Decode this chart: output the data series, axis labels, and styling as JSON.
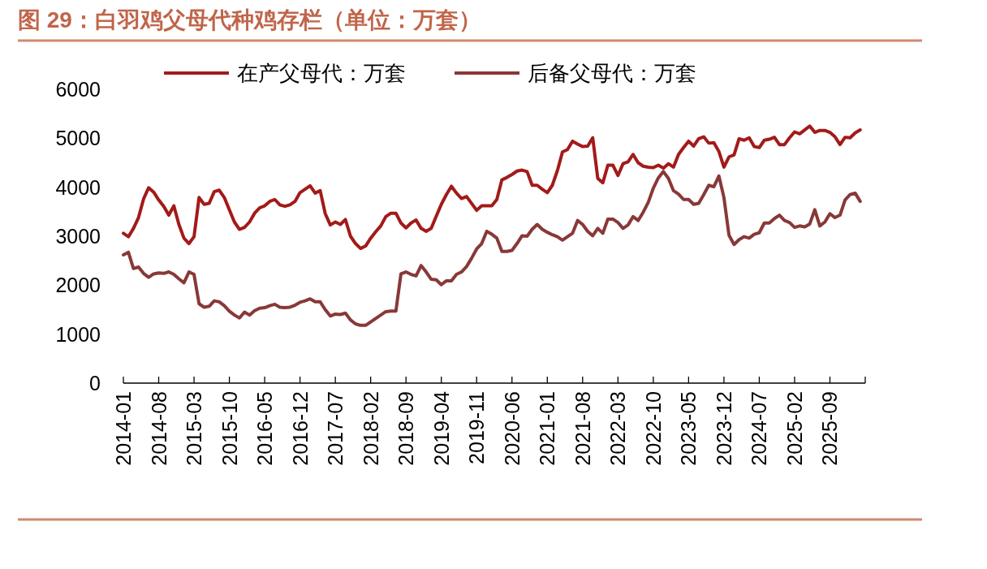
{
  "chart_data": {
    "type": "line",
    "title": "图 29：白羽鸡父母代种鸡存栏（单位：万套）",
    "x": [
      "2014-01",
      "2014-02",
      "2014-03",
      "2014-04",
      "2014-05",
      "2014-06",
      "2014-07",
      "2014-08",
      "2014-09",
      "2014-10",
      "2014-11",
      "2014-12",
      "2015-01",
      "2015-02",
      "2015-03",
      "2015-04",
      "2015-05",
      "2015-06",
      "2015-07",
      "2015-08",
      "2015-09",
      "2015-10",
      "2015-11",
      "2015-12",
      "2016-01",
      "2016-02",
      "2016-03",
      "2016-04",
      "2016-05",
      "2016-06",
      "2016-07",
      "2016-08",
      "2016-09",
      "2016-10",
      "2016-11",
      "2016-12",
      "2017-01",
      "2017-02",
      "2017-03",
      "2017-04",
      "2017-05",
      "2017-06",
      "2017-07",
      "2017-08",
      "2017-09",
      "2017-10",
      "2017-11",
      "2017-12",
      "2018-01",
      "2018-02",
      "2018-03",
      "2018-04",
      "2018-05",
      "2018-06",
      "2018-07",
      "2018-08",
      "2018-09",
      "2018-10",
      "2018-11",
      "2018-12",
      "2019-01",
      "2019-02",
      "2019-03",
      "2019-04",
      "2019-05",
      "2019-06",
      "2019-07",
      "2019-08",
      "2019-09",
      "2019-10",
      "2019-11",
      "2019-12",
      "2020-01",
      "2020-02",
      "2020-03",
      "2020-04",
      "2020-05",
      "2020-06",
      "2020-07",
      "2020-08",
      "2020-09",
      "2020-10",
      "2020-11",
      "2020-12",
      "2021-01",
      "2021-02",
      "2021-03",
      "2021-04",
      "2021-05",
      "2021-06",
      "2021-07",
      "2021-08",
      "2021-09",
      "2021-10",
      "2021-11",
      "2021-12",
      "2022-01",
      "2022-02",
      "2022-03",
      "2022-04",
      "2022-05",
      "2022-06",
      "2022-07",
      "2022-08",
      "2022-09",
      "2022-10",
      "2022-11",
      "2022-12",
      "2023-01",
      "2023-02",
      "2023-03",
      "2023-04",
      "2023-05",
      "2023-06",
      "2023-07",
      "2023-08",
      "2023-09",
      "2023-10",
      "2023-11",
      "2023-12",
      "2024-01",
      "2024-02",
      "2024-03",
      "2024-04",
      "2024-05",
      "2024-06",
      "2024-07",
      "2024-08",
      "2024-09",
      "2024-10",
      "2024-11",
      "2024-12",
      "2025-01",
      "2025-02",
      "2025-03",
      "2025-04",
      "2025-05",
      "2025-06",
      "2025-07",
      "2025-08",
      "2025-09",
      "2025-10",
      "2025-11",
      "2025-12",
      "2026-01",
      "2026-02",
      "2026-03"
    ],
    "series": [
      {
        "name": "在产父母代：万套",
        "color": "#a31a1a",
        "values": [
          3060,
          2990,
          3160,
          3380,
          3760,
          3990,
          3900,
          3740,
          3610,
          3430,
          3620,
          3240,
          2960,
          2850,
          2990,
          3790,
          3650,
          3670,
          3910,
          3940,
          3790,
          3540,
          3290,
          3140,
          3180,
          3290,
          3470,
          3580,
          3620,
          3710,
          3750,
          3640,
          3610,
          3640,
          3710,
          3890,
          3960,
          4030,
          3880,
          3930,
          3460,
          3230,
          3290,
          3240,
          3340,
          3000,
          2850,
          2750,
          2800,
          2960,
          3090,
          3210,
          3400,
          3470,
          3470,
          3270,
          3170,
          3270,
          3330,
          3160,
          3100,
          3160,
          3410,
          3650,
          3850,
          4020,
          3880,
          3770,
          3810,
          3670,
          3530,
          3620,
          3620,
          3620,
          3750,
          4150,
          4200,
          4260,
          4330,
          4350,
          4320,
          4040,
          4040,
          3960,
          3890,
          4040,
          4340,
          4720,
          4770,
          4940,
          4880,
          4830,
          4840,
          5010,
          4180,
          4090,
          4450,
          4450,
          4240,
          4480,
          4520,
          4670,
          4500,
          4430,
          4410,
          4400,
          4450,
          4390,
          4480,
          4410,
          4670,
          4810,
          4940,
          4840,
          4990,
          5030,
          4900,
          4910,
          4730,
          4410,
          4620,
          4660,
          4990,
          4960,
          5010,
          4830,
          4810,
          4960,
          4980,
          5020,
          4870,
          4870,
          5010,
          5130,
          5090,
          5170,
          5250,
          5120,
          5160,
          5160,
          5120,
          5030,
          4870,
          5020,
          5010,
          5110,
          5170
        ]
      },
      {
        "name": "后备父母代：万套",
        "color": "#893838",
        "values": [
          2620,
          2670,
          2340,
          2370,
          2240,
          2160,
          2230,
          2250,
          2240,
          2270,
          2220,
          2130,
          2050,
          2270,
          2220,
          1620,
          1550,
          1570,
          1680,
          1660,
          1580,
          1470,
          1390,
          1330,
          1450,
          1390,
          1480,
          1530,
          1540,
          1580,
          1610,
          1550,
          1540,
          1550,
          1590,
          1650,
          1680,
          1720,
          1660,
          1660,
          1500,
          1370,
          1410,
          1400,
          1430,
          1290,
          1210,
          1180,
          1180,
          1250,
          1320,
          1390,
          1460,
          1470,
          1470,
          2230,
          2270,
          2220,
          2190,
          2400,
          2270,
          2120,
          2110,
          2010,
          2090,
          2090,
          2220,
          2270,
          2380,
          2550,
          2740,
          2850,
          3100,
          3040,
          2960,
          2690,
          2690,
          2710,
          2850,
          3010,
          3000,
          3140,
          3240,
          3140,
          3080,
          3030,
          2990,
          2920,
          2990,
          3060,
          3320,
          3240,
          3100,
          3010,
          3160,
          3060,
          3350,
          3350,
          3280,
          3160,
          3230,
          3400,
          3320,
          3490,
          3690,
          3980,
          4190,
          4320,
          4180,
          3930,
          3860,
          3750,
          3750,
          3650,
          3670,
          3850,
          4040,
          4010,
          4230,
          3790,
          3020,
          2830,
          2930,
          2990,
          2960,
          3040,
          3070,
          3270,
          3270,
          3360,
          3430,
          3320,
          3280,
          3180,
          3210,
          3190,
          3250,
          3540,
          3210,
          3290,
          3460,
          3380,
          3430,
          3740,
          3850,
          3880,
          3710
        ]
      }
    ],
    "xlim": [
      "2014-01",
      "2026-04"
    ],
    "xticks": [
      "2014-01",
      "2014-08",
      "2015-03",
      "2015-10",
      "2016-05",
      "2016-12",
      "2017-07",
      "2018-02",
      "2018-09",
      "2019-04",
      "2019-11",
      "2020-06",
      "2021-01",
      "2021-08",
      "2022-03",
      "2022-10",
      "2023-05",
      "2023-12",
      "2024-07",
      "2025-02",
      "2025-09",
      {
        "value": "2026-04",
        "label": null
      }
    ],
    "ylim": [
      0,
      6000
    ],
    "yticks": [
      0,
      1000,
      2000,
      3000,
      4000,
      5000,
      6000
    ],
    "grid": false,
    "legend": "top",
    "marker": "none",
    "line_style": "solid"
  }
}
